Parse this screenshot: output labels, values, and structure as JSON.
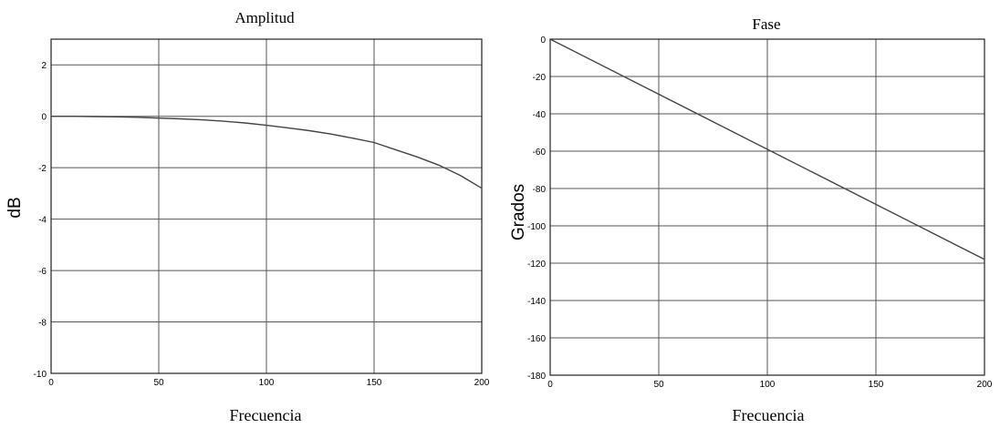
{
  "chart_data": [
    {
      "type": "line",
      "title": "Amplitud",
      "xlabel": "Frecuencia",
      "ylabel": "dB",
      "xlim": [
        0,
        200
      ],
      "ylim": [
        -10,
        3
      ],
      "xticks": [
        0,
        50,
        100,
        150,
        200
      ],
      "yticks": [
        2,
        0,
        -2,
        -4,
        -6,
        -8,
        -10
      ],
      "grid": true,
      "series": [
        {
          "x": [
            0,
            10,
            20,
            30,
            40,
            50,
            60,
            70,
            80,
            90,
            100,
            110,
            120,
            130,
            140,
            150,
            160,
            170,
            180,
            190,
            200
          ],
          "y": [
            0,
            0,
            -0.01,
            -0.02,
            -0.04,
            -0.07,
            -0.1,
            -0.14,
            -0.19,
            -0.26,
            -0.35,
            -0.45,
            -0.56,
            -0.69,
            -0.85,
            -1.02,
            -1.3,
            -1.58,
            -1.9,
            -2.3,
            -2.8
          ]
        }
      ]
    },
    {
      "type": "line",
      "title": "Fase",
      "xlabel": "Frecuencia",
      "ylabel": "Grados",
      "xlim": [
        0,
        200
      ],
      "ylim": [
        -180,
        0
      ],
      "xticks": [
        0,
        50,
        100,
        150,
        200
      ],
      "yticks": [
        0,
        -20,
        -40,
        -60,
        -80,
        -100,
        -120,
        -140,
        -160,
        -180
      ],
      "grid": true,
      "series": [
        {
          "x": [
            0,
            200
          ],
          "y": [
            0,
            -118
          ]
        }
      ]
    }
  ]
}
